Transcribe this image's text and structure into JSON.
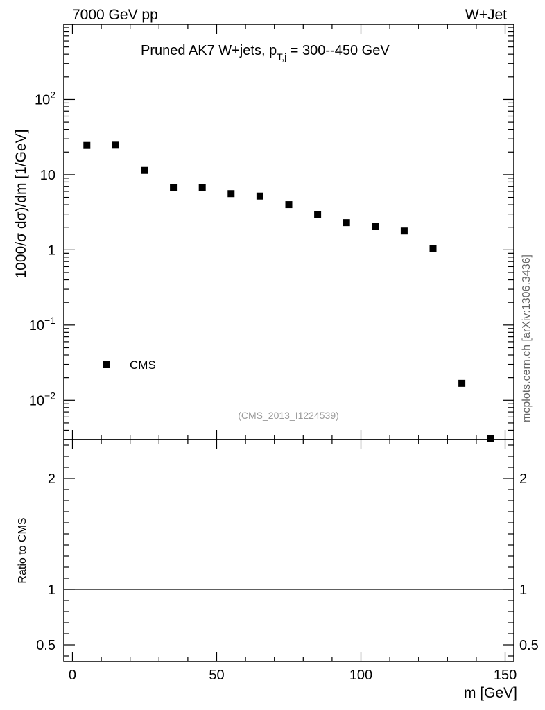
{
  "header": {
    "left": "7000 GeV pp",
    "right": "W+Jet"
  },
  "watermark": "mcplots.cern.ch [arXiv:1306.3436]",
  "chart_data": {
    "type": "scatter",
    "title": "Pruned AK7 W+jets, p",
    "title_sub": "T,j",
    "title_rest": " = 300--450 GeV",
    "ylabel": "1000/σ   dσ)/dm [1/GeV]",
    "xlabel": "m [GeV]",
    "reference": "(CMS_2013_I1224539)",
    "log_y": true,
    "xlim": [
      -3,
      153
    ],
    "ylim": [
      0.003,
      1000
    ],
    "x_ticks": [
      "0",
      "50",
      "100",
      "150"
    ],
    "y_ticks": [
      "10",
      "10",
      "1",
      "10",
      "10"
    ],
    "y_tick_exponents": [
      "2",
      "",
      "",
      "−1",
      "−2"
    ],
    "series": [
      {
        "name": "CMS",
        "marker": "square",
        "color": "#000000",
        "x": [
          5,
          15,
          25,
          35,
          45,
          55,
          65,
          75,
          85,
          95,
          105,
          115,
          125,
          135,
          145
        ],
        "y": [
          24.5,
          24.7,
          11.4,
          6.7,
          6.8,
          5.6,
          5.2,
          4.0,
          2.95,
          2.3,
          2.07,
          1.78,
          1.05,
          0.0168,
          0.003
        ]
      }
    ],
    "ratio": {
      "ylabel": "Ratio to CMS",
      "ylim": [
        0.35,
        2.35
      ],
      "y_ticks": [
        "0.5",
        "1",
        "2"
      ],
      "reference_line": 1
    }
  }
}
